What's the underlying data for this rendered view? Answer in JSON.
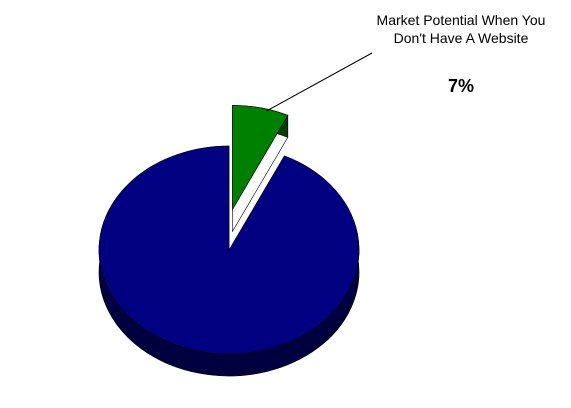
{
  "chart_data": {
    "type": "pie",
    "style": "3d-exploded",
    "slices": [
      {
        "label": "Market Potential When You Don't Have A Website",
        "value": 7,
        "color": "#008000",
        "side_color": "#004000",
        "exploded": true
      },
      {
        "label": "",
        "value": 93,
        "color": "#000080",
        "side_color": "#000040",
        "exploded": false
      }
    ],
    "annotation": {
      "text": "Market Potential When You Don't Have A Website",
      "value_text": "7%",
      "points_to": "Market Potential When You Don't Have A Website"
    }
  }
}
